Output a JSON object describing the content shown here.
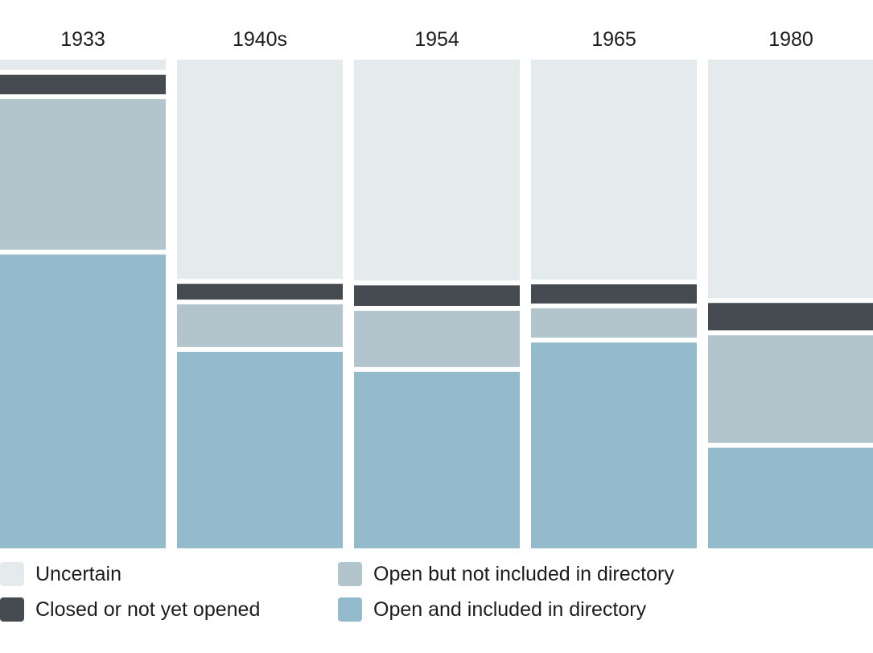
{
  "chart_data": {
    "type": "bar",
    "stacked": true,
    "normalized": true,
    "categories": [
      "1933",
      "1940s",
      "1954",
      "1965",
      "1980"
    ],
    "series": [
      {
        "name": "Open and included in directory",
        "color": "#93bbcb",
        "values": [
          60.6,
          40.7,
          36.6,
          42.6,
          21.1
        ]
      },
      {
        "name": "Open but not included in directory",
        "color": "#b2c5cd",
        "values": [
          31.8,
          9.7,
          12.5,
          7.0,
          23.0
        ]
      },
      {
        "name": "Closed or not yet opened",
        "color": "#454b50",
        "values": [
          5.0,
          4.2,
          5.2,
          4.9,
          6.6
        ]
      },
      {
        "name": "Uncertain",
        "color": "#e5ebed",
        "values": [
          2.6,
          45.4,
          45.7,
          45.5,
          49.3
        ]
      }
    ],
    "legend": {
      "placement": "bottom",
      "order": [
        "Uncertain",
        "Open but not included in directory",
        "Closed or not yet opened",
        "Open and included in directory"
      ]
    },
    "grid": false,
    "title": "",
    "xlabel": "",
    "ylabel": ""
  }
}
